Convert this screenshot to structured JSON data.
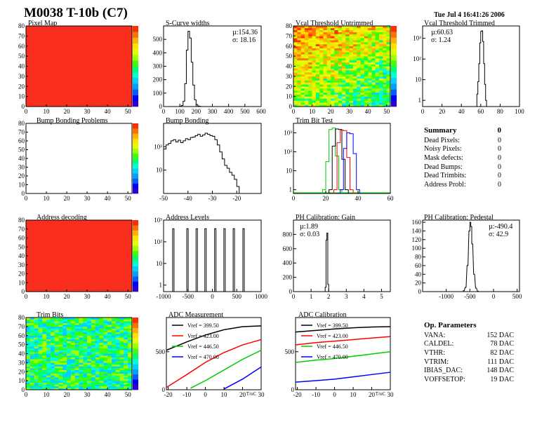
{
  "header": {
    "title": "M0038 T-10b (C7)",
    "datetime": "Tue Jul  4 16:41:26 2006"
  },
  "titles": {
    "pixel_map": "Pixel Map",
    "scurve": "S-Curve widths",
    "vcal_untrimmed": "Vcal Threshold Untrimmed",
    "vcal_trimmed": "Vcal Threshold Trimmed",
    "bump_problems": "Bump Bonding Problems",
    "bump_bonding": "Bump Bonding",
    "trim_bit_test": "Trim Bit Test",
    "address_decoding": "Address decoding",
    "address_levels": "Address Levels",
    "ph_gain": "PH Calibration: Gain",
    "ph_pedestal": "PH Calibration: Pedestal",
    "trim_bits": "Trim Bits",
    "adc_measurement": "ADC Measurement",
    "adc_calibration": "ADC Calibration"
  },
  "stats": {
    "scurve": {
      "mu": "µ:154.36",
      "sigma": "σ: 18.16"
    },
    "vcal_trimmed": {
      "mu": "µ:60.63",
      "sigma": "σ: 1.24"
    },
    "ph_gain": {
      "mu": "µ:1.89",
      "sigma": "σ: 0.03"
    },
    "ph_pedestal": {
      "mu": "µ:-490.4",
      "sigma": "σ: 42.9"
    }
  },
  "summary": {
    "title": "Summary",
    "total": "0",
    "rows": [
      {
        "label": "Dead Pixels:",
        "value": "0"
      },
      {
        "label": "Noisy Pixels:",
        "value": "0"
      },
      {
        "label": "Mask defects:",
        "value": "0"
      },
      {
        "label": "Dead Bumps:",
        "value": "0"
      },
      {
        "label": "Dead Trimbits:",
        "value": "0"
      },
      {
        "label": "Address Probl:",
        "value": "0"
      }
    ]
  },
  "op_params": {
    "title": "Op. Parameters",
    "rows": [
      {
        "label": "VANA:",
        "value": "152 DAC"
      },
      {
        "label": "CALDEL:",
        "value": "78 DAC"
      },
      {
        "label": "VTHR:",
        "value": "82 DAC"
      },
      {
        "label": "VTRIM:",
        "value": "111 DAC"
      },
      {
        "label": "IBIAS_DAC:",
        "value": "148 DAC"
      },
      {
        "label": "VOFFSETOP:",
        "value": "19 DAC"
      }
    ]
  },
  "colors": {
    "black": "#000000",
    "red": "#ff0000",
    "green": "#00cc00",
    "blue": "#0000ff",
    "map_red": "#ff2a1a"
  },
  "chart_data": [
    {
      "id": "pixel_map",
      "type": "heatmap",
      "title": "Pixel Map",
      "xlim": [
        0,
        52
      ],
      "ylim": [
        0,
        80
      ],
      "xticks": [
        "0",
        "10",
        "20",
        "30",
        "40",
        "50"
      ],
      "yticks": [
        "0",
        "10",
        "20",
        "30",
        "40",
        "50",
        "60",
        "70",
        "80"
      ],
      "fill": "uniform-max"
    },
    {
      "id": "scurve",
      "type": "bar",
      "title": "S-Curve widths",
      "xlim": [
        0,
        600
      ],
      "ylim": [
        0,
        600
      ],
      "xticks": [
        "0",
        "100",
        "200",
        "300",
        "400",
        "500",
        "600"
      ],
      "yticks": [
        "0",
        "100",
        "200",
        "300",
        "400",
        "500"
      ],
      "x": [
        100,
        110,
        120,
        130,
        140,
        150,
        160,
        170,
        180,
        190,
        200,
        210,
        220
      ],
      "values": [
        2,
        8,
        40,
        170,
        420,
        560,
        510,
        330,
        160,
        50,
        15,
        4,
        1
      ]
    },
    {
      "id": "vcal_untrimmed",
      "type": "heatmap",
      "title": "Vcal Threshold Untrimmed",
      "xlim": [
        0,
        52
      ],
      "ylim": [
        0,
        80
      ],
      "xticks": [
        "0",
        "10",
        "20",
        "30",
        "40",
        "50"
      ],
      "yticks": [
        "0",
        "10",
        "20",
        "30",
        "40",
        "50",
        "60",
        "70",
        "80"
      ],
      "fill": "gradient-noisy"
    },
    {
      "id": "vcal_trimmed",
      "type": "bar",
      "title": "Vcal Threshold Trimmed",
      "xlim": [
        0,
        100
      ],
      "log_y": true,
      "xticks": [
        "0",
        "20",
        "40",
        "60",
        "80",
        "100"
      ],
      "yticks": [
        "1",
        "10",
        "10²"
      ],
      "x": [
        56,
        57,
        58,
        59,
        60,
        61,
        62,
        63,
        64,
        65
      ],
      "values": [
        2,
        8,
        60,
        600,
        2200,
        2300,
        700,
        60,
        6,
        1
      ]
    },
    {
      "id": "bump_problems",
      "type": "heatmap",
      "title": "Bump Bonding Problems",
      "xlim": [
        0,
        52
      ],
      "ylim": [
        0,
        80
      ],
      "xticks": [
        "0",
        "10",
        "20",
        "30",
        "40",
        "50"
      ],
      "yticks": [
        "0",
        "10",
        "20",
        "30",
        "40",
        "50",
        "60",
        "70",
        "80"
      ],
      "fill": "empty"
    },
    {
      "id": "bump_bonding",
      "type": "bar",
      "title": "Bump Bonding",
      "xlim": [
        -50,
        -10
      ],
      "log_y": true,
      "xticks": [
        "-50",
        "-40",
        "-30",
        "-20"
      ],
      "yticks": [
        "10",
        "10²"
      ],
      "x": [
        -50,
        -49,
        -48,
        -47,
        -46,
        -45,
        -44,
        -43,
        -42,
        -41,
        -40,
        -39,
        -38,
        -37,
        -36,
        -35,
        -34,
        -33,
        -32,
        -31,
        -30,
        -29,
        -28,
        -27,
        -26,
        -25,
        -24,
        -23,
        -22,
        -21,
        -20,
        -19,
        -18
      ],
      "values": [
        80,
        120,
        140,
        180,
        200,
        160,
        190,
        150,
        180,
        220,
        200,
        250,
        260,
        300,
        340,
        280,
        320,
        380,
        340,
        300,
        280,
        200,
        120,
        60,
        30,
        16,
        12,
        8,
        6,
        4,
        2,
        1,
        1
      ]
    },
    {
      "id": "trim_bit_test",
      "type": "line",
      "title": "Trim Bit Test",
      "xlim": [
        0,
        60
      ],
      "log_y": true,
      "xticks": [
        "0",
        "20",
        "40",
        "60"
      ],
      "yticks": [
        "1",
        "10",
        "10²",
        "10³"
      ],
      "series": [
        {
          "color": "#00cc00",
          "x": [
            18,
            20,
            22,
            24,
            26,
            28
          ],
          "values": [
            1,
            30,
            1500,
            1800,
            60,
            1
          ]
        },
        {
          "color": "#000000",
          "x": [
            22,
            24,
            26,
            28,
            30,
            32
          ],
          "values": [
            1,
            200,
            1600,
            1500,
            40,
            1
          ]
        },
        {
          "color": "#ff0000",
          "x": [
            25,
            27,
            29,
            31,
            33,
            35
          ],
          "values": [
            1,
            300,
            1400,
            1300,
            50,
            1
          ]
        },
        {
          "color": "#0000ff",
          "x": [
            29,
            31,
            33,
            35,
            37,
            39
          ],
          "values": [
            1,
            150,
            1000,
            900,
            80,
            1
          ]
        }
      ]
    },
    {
      "id": "address_decoding",
      "type": "heatmap",
      "title": "Address decoding",
      "xlim": [
        0,
        52
      ],
      "ylim": [
        0,
        80
      ],
      "xticks": [
        "0",
        "10",
        "20",
        "30",
        "40",
        "50"
      ],
      "yticks": [
        "0",
        "10",
        "20",
        "30",
        "40",
        "50",
        "60",
        "70",
        "80"
      ],
      "fill": "uniform-max"
    },
    {
      "id": "address_levels",
      "type": "bar",
      "title": "Address Levels",
      "xlim": [
        -1000,
        1000
      ],
      "log_y": true,
      "xticks": [
        "-1000",
        "-500",
        "0",
        "500",
        "1000"
      ],
      "yticks": [
        "1",
        "10",
        "10²",
        "10³"
      ],
      "x": [
        -800,
        -510,
        -320,
        -140,
        60,
        250,
        440,
        640
      ],
      "values": [
        400,
        400,
        400,
        400,
        400,
        400,
        400,
        400
      ]
    },
    {
      "id": "ph_gain",
      "type": "bar",
      "title": "PH Calibration: Gain",
      "xlim": [
        0,
        5.5
      ],
      "ylim": [
        0,
        1000
      ],
      "xticks": [
        "0",
        "1",
        "2",
        "3",
        "4",
        "5"
      ],
      "yticks": [
        "0",
        "200",
        "400",
        "600",
        "800"
      ],
      "x": [
        1.8,
        1.85,
        1.9,
        1.95
      ],
      "values": [
        60,
        720,
        820,
        100
      ]
    },
    {
      "id": "ph_pedestal",
      "type": "bar",
      "title": "PH Calibration: Pedestal",
      "xlim": [
        -1500,
        550
      ],
      "ylim": [
        0,
        165
      ],
      "xticks": [
        "-1000",
        "-500",
        "0",
        "500"
      ],
      "yticks": [
        "0",
        "20",
        "40",
        "60",
        "80",
        "100",
        "120",
        "140",
        "160"
      ],
      "x": [
        -640,
        -600,
        -560,
        -520,
        -500,
        -480,
        -460,
        -420,
        -380,
        -340
      ],
      "values": [
        2,
        10,
        60,
        140,
        160,
        150,
        110,
        40,
        8,
        1
      ]
    },
    {
      "id": "trim_bits",
      "type": "heatmap",
      "title": "Trim Bits",
      "xlim": [
        0,
        52
      ],
      "ylim": [
        0,
        80
      ],
      "xticks": [
        "0",
        "10",
        "20",
        "30",
        "40",
        "50"
      ],
      "yticks": [
        "0",
        "10",
        "20",
        "30",
        "40",
        "50",
        "60",
        "70",
        "80"
      ],
      "fill": "noisy-mid"
    },
    {
      "id": "adc_measurement",
      "type": "line",
      "title": "ADC Measurement",
      "xlim": [
        -21,
        30
      ],
      "ylim": [
        0,
        950
      ],
      "xticks": [
        "-20",
        "-10",
        "0",
        "10",
        "20",
        "30"
      ],
      "yticks": [
        "0",
        "500"
      ],
      "xlabel": "T/oC",
      "series": [
        {
          "name": "Vref = 399.50",
          "color": "#000000",
          "x": [
            -21,
            -10,
            0,
            10,
            20,
            30
          ],
          "values": [
            520,
            630,
            720,
            790,
            830,
            840
          ]
        },
        {
          "name": "Vref = 423.00",
          "color": "#ff0000",
          "x": [
            -21,
            -10,
            0,
            10,
            20,
            30
          ],
          "values": [
            30,
            200,
            360,
            490,
            590,
            660
          ]
        },
        {
          "name": "Vref = 446.50",
          "color": "#00cc00",
          "x": [
            -8,
            0,
            10,
            20,
            30
          ],
          "values": [
            20,
            120,
            260,
            400,
            520
          ]
        },
        {
          "name": "Vref = 470.00",
          "color": "#0000ff",
          "x": [
            10,
            20,
            30
          ],
          "values": [
            10,
            140,
            300
          ]
        }
      ]
    },
    {
      "id": "adc_calibration",
      "type": "line",
      "title": "ADC Calibration",
      "xlim": [
        -21,
        30
      ],
      "ylim": [
        0,
        950
      ],
      "xticks": [
        "-20",
        "-10",
        "0",
        "10",
        "20",
        "30"
      ],
      "yticks": [
        "0",
        "500"
      ],
      "xlabel": "T/oC",
      "series": [
        {
          "name": "Vref = 399.50",
          "color": "#000000",
          "x": [
            -21,
            -10,
            0,
            10,
            20,
            30
          ],
          "values": [
            760,
            780,
            800,
            815,
            825,
            830
          ]
        },
        {
          "name": "Vref = 423.00",
          "color": "#ff0000",
          "x": [
            -21,
            -10,
            0,
            10,
            20,
            30
          ],
          "values": [
            590,
            620,
            640,
            660,
            680,
            700
          ]
        },
        {
          "name": "Vref = 446.50",
          "color": "#00cc00",
          "x": [
            -21,
            -10,
            0,
            10,
            20,
            30
          ],
          "values": [
            360,
            390,
            410,
            440,
            470,
            500
          ]
        },
        {
          "name": "Vref = 470.00",
          "color": "#0000ff",
          "x": [
            -21,
            -10,
            0,
            10,
            20,
            30
          ],
          "values": [
            100,
            120,
            140,
            170,
            200,
            230
          ]
        }
      ]
    }
  ]
}
